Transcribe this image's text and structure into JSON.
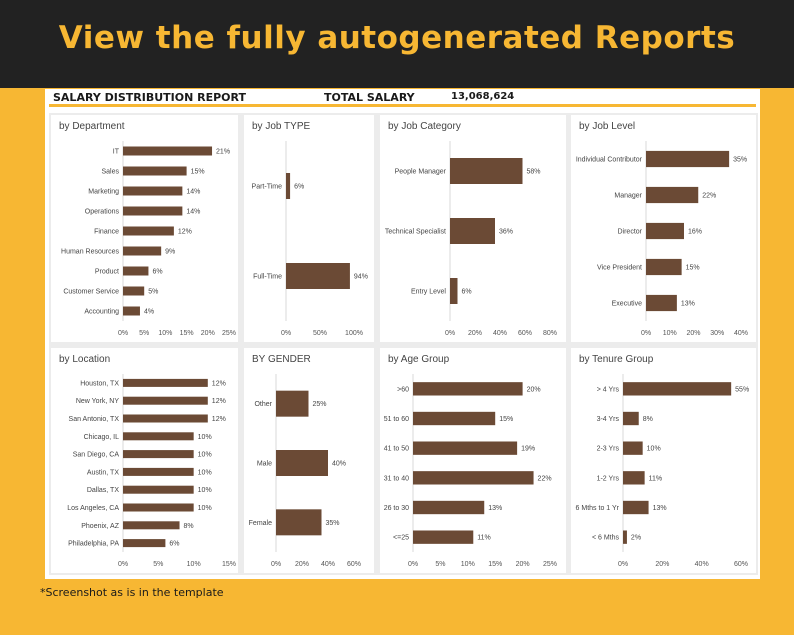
{
  "banner": {
    "title": "View the fully autogenerated Reports"
  },
  "report": {
    "title": "SALARY DISTRIBUTION REPORT",
    "total_label": "TOTAL SALARY",
    "total_value": "13,068,624"
  },
  "footnote": "*Screenshot as is in the template",
  "colors": {
    "bar": "#6b4a35",
    "accent": "#f7b733",
    "banner": "#222222"
  },
  "chart_data": [
    {
      "type": "bar",
      "orientation": "horizontal",
      "title": "by Department",
      "categories": [
        "IT",
        "Sales",
        "Marketing",
        "Operations",
        "Finance",
        "Human Resources",
        "Product",
        "Customer Service",
        "Accounting"
      ],
      "values": [
        21,
        15,
        14,
        14,
        12,
        9,
        6,
        5,
        4
      ],
      "ticks": [
        0,
        5,
        10,
        15,
        20,
        25
      ],
      "xlim": [
        0,
        25
      ],
      "unit": "%"
    },
    {
      "type": "bar",
      "orientation": "horizontal",
      "title": "by Job TYPE",
      "categories": [
        "Part-Time",
        "Full-Time"
      ],
      "values": [
        6,
        94
      ],
      "ticks": [
        0,
        50,
        100
      ],
      "xlim": [
        0,
        100
      ],
      "unit": "%"
    },
    {
      "type": "bar",
      "orientation": "horizontal",
      "title": "by Job Category",
      "categories": [
        "People Manager",
        "Technical Specialist",
        "Entry Level"
      ],
      "values": [
        58,
        36,
        6
      ],
      "ticks": [
        0,
        20,
        40,
        60,
        80
      ],
      "xlim": [
        0,
        80
      ],
      "unit": "%"
    },
    {
      "type": "bar",
      "orientation": "horizontal",
      "title": "by Job Level",
      "categories": [
        "Individual Contributor",
        "Manager",
        "Director",
        "Vice President",
        "Executive"
      ],
      "values": [
        35,
        22,
        16,
        15,
        13
      ],
      "ticks": [
        0,
        10,
        20,
        30,
        40
      ],
      "xlim": [
        0,
        40
      ],
      "unit": "%"
    },
    {
      "type": "bar",
      "orientation": "horizontal",
      "title": "by Location",
      "categories": [
        "Houston, TX",
        "New York, NY",
        "San Antonio, TX",
        "Chicago, IL",
        "San Diego, CA",
        "Austin, TX",
        "Dallas, TX",
        "Los Angeles, CA",
        "Phoenix, AZ",
        "Philadelphia, PA"
      ],
      "values": [
        12,
        12,
        12,
        10,
        10,
        10,
        10,
        10,
        8,
        6
      ],
      "ticks": [
        0,
        5,
        10,
        15
      ],
      "xlim": [
        0,
        15
      ],
      "unit": "%"
    },
    {
      "type": "bar",
      "orientation": "horizontal",
      "title": "BY GENDER",
      "categories": [
        "Other",
        "Male",
        "Female"
      ],
      "values": [
        25,
        40,
        35
      ],
      "ticks": [
        0,
        20,
        40,
        60
      ],
      "xlim": [
        0,
        60
      ],
      "unit": "%"
    },
    {
      "type": "bar",
      "orientation": "horizontal",
      "title": "by Age Group",
      "categories": [
        ">60",
        "51 to 60",
        "41 to 50",
        "31 to 40",
        "26 to 30",
        "<=25"
      ],
      "values": [
        20,
        15,
        19,
        22,
        13,
        11
      ],
      "ticks": [
        0,
        5,
        10,
        15,
        20,
        25
      ],
      "xlim": [
        0,
        25
      ],
      "unit": "%"
    },
    {
      "type": "bar",
      "orientation": "horizontal",
      "title": "by Tenure Group",
      "categories": [
        "> 4 Yrs",
        "3-4 Yrs",
        "2-3 Yrs",
        "1-2 Yrs",
        "6 Mths to 1 Yr",
        "< 6 Mths"
      ],
      "values": [
        55,
        8,
        10,
        11,
        13,
        2
      ],
      "ticks": [
        0,
        20,
        40,
        60
      ],
      "xlim": [
        0,
        60
      ],
      "unit": "%"
    }
  ]
}
